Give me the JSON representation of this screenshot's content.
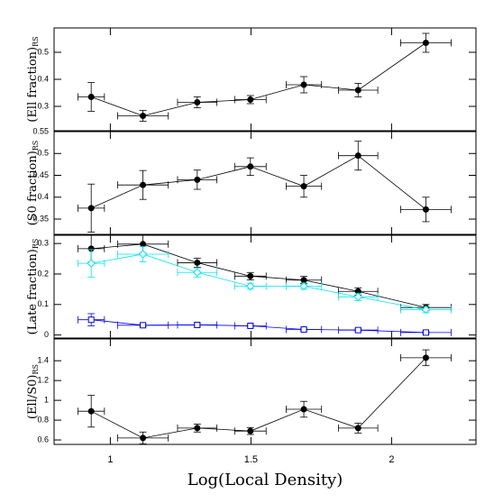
{
  "chart_data": [
    {
      "type": "errorbar",
      "ylabel": "(Ell fraction)",
      "ylabel_sub": "RS",
      "x": [
        0.932,
        1.116,
        1.309,
        1.498,
        1.688,
        1.881,
        2.122
      ],
      "x_err": [
        0.047,
        0.09,
        0.07,
        0.056,
        0.063,
        0.07,
        0.09
      ],
      "xlim": [
        0.8,
        2.3
      ],
      "xticks": [
        1,
        1.5,
        2
      ],
      "ylim": [
        0.21,
        0.59
      ],
      "yticks": [
        0.3,
        0.4,
        0.5
      ],
      "series": [
        {
          "color": "#000000",
          "marker": "circle",
          "values": [
            0.335,
            0.265,
            0.315,
            0.325,
            0.38,
            0.36,
            0.535
          ],
          "errors": [
            0.053,
            0.02,
            0.02,
            0.015,
            0.03,
            0.025,
            0.035
          ]
        }
      ]
    },
    {
      "type": "errorbar",
      "ylabel": "(S0 fraction)",
      "ylabel_sub": "RS",
      "x": [
        0.932,
        1.116,
        1.309,
        1.498,
        1.688,
        1.881,
        2.122
      ],
      "x_err": [
        0.047,
        0.09,
        0.07,
        0.056,
        0.063,
        0.07,
        0.09
      ],
      "xlim": [
        0.8,
        2.3
      ],
      "xticks": [
        1,
        1.5,
        2
      ],
      "ylim": [
        0.315,
        0.55
      ],
      "yticks": [
        0.35,
        0.4,
        0.45,
        0.5,
        0.55
      ],
      "series": [
        {
          "color": "#000000",
          "marker": "circle",
          "values": [
            0.375,
            0.428,
            0.44,
            0.47,
            0.425,
            0.495,
            0.372
          ],
          "errors": [
            0.055,
            0.033,
            0.022,
            0.02,
            0.025,
            0.033,
            0.028
          ]
        }
      ]
    },
    {
      "type": "errorbar",
      "ylabel": "(Late fraction)",
      "ylabel_sub": "RS",
      "x": [
        0.932,
        1.116,
        1.309,
        1.498,
        1.688,
        1.881,
        2.122
      ],
      "x_err": [
        0.047,
        0.09,
        0.07,
        0.056,
        0.063,
        0.07,
        0.09
      ],
      "xlim": [
        0.8,
        2.3
      ],
      "xticks": [
        1,
        1.5,
        2
      ],
      "ylim": [
        -0.01,
        0.327
      ],
      "yticks": [
        0,
        0.1,
        0.2,
        0.3
      ],
      "series": [
        {
          "color": "#000000",
          "marker": "circle",
          "values": [
            0.283,
            0.298,
            0.237,
            0.193,
            0.18,
            0.143,
            0.09
          ],
          "errors": [
            0.045,
            0.03,
            0.015,
            0.012,
            0.012,
            0.012,
            0.01
          ]
        },
        {
          "color": "#00e5ee",
          "marker": "diamond",
          "values": [
            0.235,
            0.265,
            0.205,
            0.16,
            0.16,
            0.125,
            0.083
          ],
          "errors": [
            0.045,
            0.025,
            0.015,
            0.01,
            0.01,
            0.012,
            0.01
          ]
        },
        {
          "color": "#0000ff",
          "marker": "square",
          "values": [
            0.05,
            0.032,
            0.033,
            0.03,
            0.018,
            0.016,
            0.008
          ],
          "errors": [
            0.02,
            0.005,
            0.005,
            0.004,
            0.004,
            0.004,
            0.003
          ]
        }
      ]
    },
    {
      "type": "errorbar",
      "ylabel": "(Ell/S0)",
      "ylabel_sub": "RS",
      "xlabel": "Log(Local Density)",
      "x": [
        0.932,
        1.116,
        1.309,
        1.498,
        1.688,
        1.881,
        2.122
      ],
      "x_err": [
        0.047,
        0.09,
        0.07,
        0.056,
        0.063,
        0.07,
        0.09
      ],
      "xlim": [
        0.8,
        2.3
      ],
      "xticks": [
        1,
        1.5,
        2
      ],
      "ylim": [
        0.555,
        1.62
      ],
      "yticks": [
        0.6,
        0.8,
        1,
        1.2,
        1.4
      ],
      "series": [
        {
          "color": "#000000",
          "marker": "circle",
          "values": [
            0.89,
            0.62,
            0.72,
            0.69,
            0.91,
            0.72,
            1.43
          ],
          "errors": [
            0.16,
            0.06,
            0.04,
            0.035,
            0.08,
            0.05,
            0.08
          ]
        }
      ]
    }
  ]
}
